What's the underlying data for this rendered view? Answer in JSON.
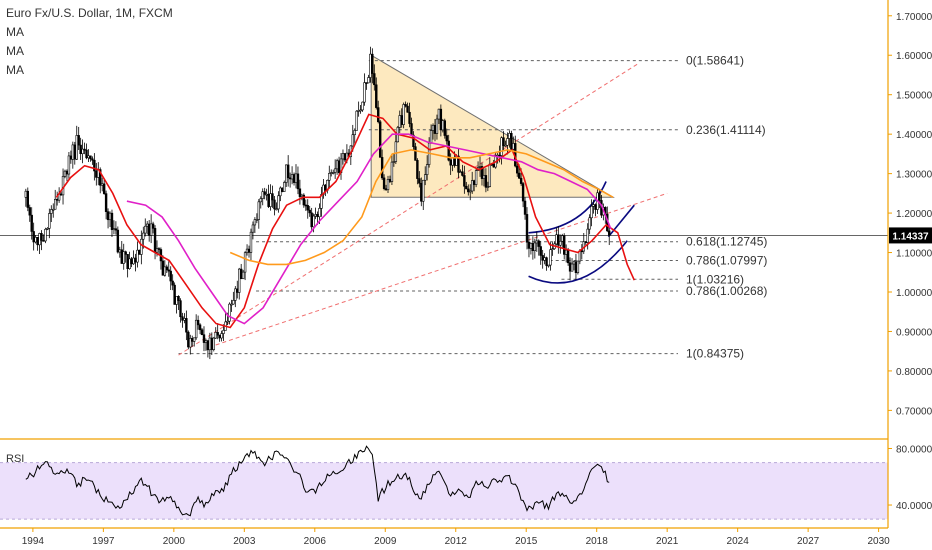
{
  "header": {
    "title": "Euro Fx/U.S. Dollar, 1M, FXCM",
    "indicators": [
      "MA",
      "MA",
      "MA"
    ]
  },
  "rsi_label": "RSI",
  "price_badge": "1.14337",
  "colors": {
    "candle": "#000000",
    "ma_fast": "#e81010",
    "ma_mid": "#e020c8",
    "ma_slow": "#ff9a1c",
    "triangle_fill": "#fde5b4",
    "trend_dashed": "#f07070",
    "arc": "#0a0a80",
    "rsi_band": "#ece0fb",
    "axis": "#f0a000"
  },
  "chart_data": [
    {
      "type": "line",
      "title": "Euro Fx/U.S. Dollar, 1M, FXCM",
      "x_ticks": [
        "1994",
        "1997",
        "2000",
        "2003",
        "2006",
        "2009",
        "2012",
        "2015",
        "2018",
        "2021",
        "2024",
        "2027",
        "2030"
      ],
      "y_ticks": [
        "1.70000",
        "1.60000",
        "1.50000",
        "1.40000",
        "1.30000",
        "1.20000",
        "1.10000",
        "1.00000",
        "0.90000",
        "0.80000",
        "0.70000"
      ],
      "ylim": [
        0.63,
        1.74
      ],
      "xlim": [
        1992.6,
        2030.4
      ],
      "last_price": 1.14337,
      "price_anchors": [
        [
          1993.7,
          1.24
        ],
        [
          1994.0,
          1.13
        ],
        [
          1994.5,
          1.14
        ],
        [
          1995.0,
          1.24
        ],
        [
          1995.4,
          1.3
        ],
        [
          1995.9,
          1.38
        ],
        [
          1996.3,
          1.33
        ],
        [
          1996.8,
          1.3
        ],
        [
          1997.2,
          1.2
        ],
        [
          1997.7,
          1.1
        ],
        [
          1998.2,
          1.07
        ],
        [
          1998.6,
          1.12
        ],
        [
          1999.0,
          1.17
        ],
        [
          1999.4,
          1.08
        ],
        [
          1999.8,
          1.03
        ],
        [
          2000.3,
          0.95
        ],
        [
          2000.7,
          0.86
        ],
        [
          2001.0,
          0.93
        ],
        [
          2001.4,
          0.86
        ],
        [
          2001.8,
          0.88
        ],
        [
          2002.1,
          0.88
        ],
        [
          2002.5,
          0.98
        ],
        [
          2003.0,
          1.08
        ],
        [
          2003.4,
          1.17
        ],
        [
          2003.9,
          1.25
        ],
        [
          2004.3,
          1.22
        ],
        [
          2004.8,
          1.3
        ],
        [
          2005.2,
          1.29
        ],
        [
          2005.6,
          1.21
        ],
        [
          2005.9,
          1.18
        ],
        [
          2006.4,
          1.26
        ],
        [
          2006.9,
          1.31
        ],
        [
          2007.4,
          1.35
        ],
        [
          2007.9,
          1.46
        ],
        [
          2008.2,
          1.55
        ],
        [
          2008.4,
          1.59
        ],
        [
          2008.7,
          1.44
        ],
        [
          2008.9,
          1.26
        ],
        [
          2009.2,
          1.3
        ],
        [
          2009.6,
          1.42
        ],
        [
          2009.9,
          1.48
        ],
        [
          2010.3,
          1.35
        ],
        [
          2010.5,
          1.22
        ],
        [
          2010.9,
          1.38
        ],
        [
          2011.3,
          1.45
        ],
        [
          2011.8,
          1.33
        ],
        [
          2012.2,
          1.32
        ],
        [
          2012.5,
          1.23
        ],
        [
          2012.9,
          1.3
        ],
        [
          2013.3,
          1.28
        ],
        [
          2013.8,
          1.36
        ],
        [
          2014.3,
          1.38
        ],
        [
          2014.6,
          1.33
        ],
        [
          2014.9,
          1.2
        ],
        [
          2015.1,
          1.1
        ],
        [
          2015.5,
          1.12
        ],
        [
          2015.9,
          1.07
        ],
        [
          2016.3,
          1.13
        ],
        [
          2016.7,
          1.11
        ],
        [
          2016.9,
          1.05
        ],
        [
          2017.3,
          1.09
        ],
        [
          2017.7,
          1.19
        ],
        [
          2018.1,
          1.24
        ],
        [
          2018.4,
          1.17
        ],
        [
          2018.6,
          1.1434
        ]
      ],
      "moving_averages": [
        {
          "points": [
            [
              1995.0,
              1.24
            ],
            [
              1995.6,
              1.29
            ],
            [
              1996.2,
              1.32
            ],
            [
              1996.8,
              1.31
            ],
            [
              1997.4,
              1.25
            ],
            [
              1998.0,
              1.17
            ],
            [
              1998.6,
              1.12
            ],
            [
              1999.2,
              1.1
            ],
            [
              1999.8,
              1.08
            ],
            [
              2000.5,
              1.02
            ],
            [
              2001.2,
              0.96
            ],
            [
              2001.8,
              0.92
            ],
            [
              2002.4,
              0.91
            ],
            [
              2003.0,
              0.96
            ],
            [
              2003.6,
              1.07
            ],
            [
              2004.2,
              1.16
            ],
            [
              2004.8,
              1.22
            ],
            [
              2005.5,
              1.24
            ],
            [
              2006.2,
              1.24
            ],
            [
              2006.9,
              1.28
            ],
            [
              2007.6,
              1.36
            ],
            [
              2008.3,
              1.45
            ],
            [
              2008.9,
              1.44
            ],
            [
              2009.5,
              1.4
            ],
            [
              2010.2,
              1.39
            ],
            [
              2010.9,
              1.36
            ],
            [
              2011.6,
              1.37
            ],
            [
              2012.3,
              1.33
            ],
            [
              2013.0,
              1.31
            ],
            [
              2013.7,
              1.33
            ],
            [
              2014.4,
              1.36
            ],
            [
              2014.9,
              1.29
            ],
            [
              2015.4,
              1.19
            ],
            [
              2016.0,
              1.12
            ],
            [
              2016.6,
              1.11
            ],
            [
              2017.2,
              1.1
            ],
            [
              2017.8,
              1.13
            ],
            [
              2018.4,
              1.17
            ],
            [
              2018.9,
              1.15
            ],
            [
              2019.3,
              1.07
            ],
            [
              2019.6,
              1.03
            ]
          ]
        },
        {
          "points": [
            [
              1998.0,
              1.23
            ],
            [
              1998.8,
              1.22
            ],
            [
              1999.5,
              1.19
            ],
            [
              2000.2,
              1.13
            ],
            [
              2000.9,
              1.06
            ],
            [
              2001.6,
              1.0
            ],
            [
              2002.3,
              0.94
            ],
            [
              2003.0,
              0.92
            ],
            [
              2003.8,
              0.96
            ],
            [
              2004.6,
              1.04
            ],
            [
              2005.4,
              1.12
            ],
            [
              2006.2,
              1.18
            ],
            [
              2007.0,
              1.23
            ],
            [
              2007.8,
              1.28
            ],
            [
              2008.5,
              1.35
            ],
            [
              2009.3,
              1.4
            ],
            [
              2010.0,
              1.4
            ],
            [
              2010.8,
              1.38
            ],
            [
              2011.6,
              1.37
            ],
            [
              2012.4,
              1.36
            ],
            [
              2013.2,
              1.35
            ],
            [
              2014.0,
              1.34
            ],
            [
              2014.8,
              1.33
            ],
            [
              2015.5,
              1.31
            ],
            [
              2016.2,
              1.3
            ],
            [
              2016.9,
              1.28
            ],
            [
              2017.6,
              1.26
            ],
            [
              2018.2,
              1.22
            ],
            [
              2018.6,
              1.16
            ]
          ]
        },
        {
          "points": [
            [
              2002.4,
              1.1
            ],
            [
              2003.2,
              1.08
            ],
            [
              2004.0,
              1.07
            ],
            [
              2004.8,
              1.07
            ],
            [
              2005.6,
              1.08
            ],
            [
              2006.4,
              1.1
            ],
            [
              2007.2,
              1.13
            ],
            [
              2008.0,
              1.19
            ],
            [
              2008.6,
              1.28
            ],
            [
              2009.3,
              1.35
            ],
            [
              2010.1,
              1.36
            ],
            [
              2011.0,
              1.35
            ],
            [
              2011.8,
              1.34
            ],
            [
              2012.6,
              1.34
            ],
            [
              2013.4,
              1.35
            ],
            [
              2014.2,
              1.36
            ],
            [
              2015.0,
              1.35
            ],
            [
              2015.8,
              1.33
            ],
            [
              2016.6,
              1.31
            ],
            [
              2017.4,
              1.28
            ],
            [
              2018.1,
              1.26
            ],
            [
              2018.7,
              1.24
            ]
          ]
        }
      ],
      "fibonacci_levels": [
        {
          "label": "0(1.58641)",
          "value": 1.58641,
          "start": 2008.3
        },
        {
          "label": "0.236(1.41114)",
          "value": 1.41114,
          "start": 2008.3
        },
        {
          "label": "0.618(1.12745)",
          "value": 1.12745,
          "start": 2003.5
        },
        {
          "label": "0.786(1.07997)",
          "value": 1.07997,
          "start": 2016.0
        },
        {
          "label": "1(1.03216)",
          "value": 1.03216,
          "start": 2016.5
        },
        {
          "label": "0.786(1.00268)",
          "value": 1.00268,
          "start": 2003.5
        },
        {
          "label": "1(0.84375)",
          "value": 0.84375,
          "start": 2000.2
        }
      ]
    },
    {
      "type": "line",
      "title": "RSI",
      "y_ticks": [
        "80.0000",
        "40.0000"
      ],
      "ylim": [
        28,
        86
      ],
      "band": [
        30,
        70
      ],
      "rsi_anchors": [
        [
          1993.7,
          60
        ],
        [
          1994.0,
          62
        ],
        [
          1994.5,
          70
        ],
        [
          1995.0,
          60
        ],
        [
          1995.4,
          64
        ],
        [
          1995.9,
          55
        ],
        [
          1996.3,
          58
        ],
        [
          1996.8,
          50
        ],
        [
          1997.2,
          42
        ],
        [
          1997.7,
          38
        ],
        [
          1998.2,
          48
        ],
        [
          1998.6,
          58
        ],
        [
          1999.0,
          50
        ],
        [
          1999.4,
          42
        ],
        [
          1999.8,
          46
        ],
        [
          2000.3,
          36
        ],
        [
          2000.7,
          32
        ],
        [
          2001.0,
          45
        ],
        [
          2001.4,
          40
        ],
        [
          2001.8,
          52
        ],
        [
          2002.1,
          50
        ],
        [
          2002.5,
          64
        ],
        [
          2003.0,
          72
        ],
        [
          2003.4,
          78
        ],
        [
          2003.9,
          70
        ],
        [
          2004.3,
          76
        ],
        [
          2004.8,
          72
        ],
        [
          2005.2,
          64
        ],
        [
          2005.6,
          52
        ],
        [
          2005.9,
          48
        ],
        [
          2006.4,
          58
        ],
        [
          2006.9,
          64
        ],
        [
          2007.4,
          70
        ],
        [
          2007.9,
          76
        ],
        [
          2008.2,
          80
        ],
        [
          2008.4,
          78
        ],
        [
          2008.6,
          58
        ],
        [
          2008.7,
          44
        ],
        [
          2008.9,
          50
        ],
        [
          2009.2,
          56
        ],
        [
          2009.6,
          60
        ],
        [
          2009.9,
          62
        ],
        [
          2010.3,
          48
        ],
        [
          2010.5,
          44
        ],
        [
          2010.9,
          58
        ],
        [
          2011.3,
          62
        ],
        [
          2011.8,
          48
        ],
        [
          2012.2,
          50
        ],
        [
          2012.5,
          44
        ],
        [
          2012.9,
          56
        ],
        [
          2013.3,
          52
        ],
        [
          2013.8,
          58
        ],
        [
          2014.3,
          60
        ],
        [
          2014.6,
          52
        ],
        [
          2014.9,
          40
        ],
        [
          2015.1,
          36
        ],
        [
          2015.5,
          44
        ],
        [
          2015.9,
          38
        ],
        [
          2016.3,
          48
        ],
        [
          2016.7,
          44
        ],
        [
          2016.9,
          40
        ],
        [
          2017.3,
          48
        ],
        [
          2017.7,
          62
        ],
        [
          2018.1,
          70
        ],
        [
          2018.4,
          60
        ],
        [
          2018.6,
          52
        ]
      ]
    }
  ]
}
